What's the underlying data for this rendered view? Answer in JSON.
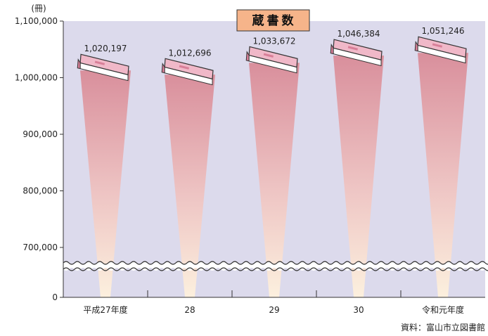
{
  "chart_data": {
    "type": "bar",
    "title": "蔵書数",
    "unit": "(冊)",
    "source": "資料：富山市立図書館",
    "categories": [
      "平成27年度",
      "28",
      "29",
      "30",
      "令和元年度"
    ],
    "values": [
      1020197,
      1012696,
      1033672,
      1046384,
      1051246
    ],
    "value_labels": [
      "1,020,197",
      "1,012,696",
      "1,033,672",
      "1,046,384",
      "1,051,246"
    ],
    "y_ticks": [
      0,
      700000,
      800000,
      900000,
      1000000,
      1100000
    ],
    "y_tick_labels": [
      "0",
      "700,000",
      "800,000",
      "900,000",
      "1,000,000",
      "1,100,000"
    ],
    "ylim": [
      0,
      1100000
    ],
    "axis_break": "between 0 and 700,000",
    "grid": false,
    "marker": "book-icon",
    "colors": {
      "plot_background": "#dcdaec",
      "title_box": "#f6b48a",
      "beam_top": "#d98f9c",
      "beam_bottom": "#fbeede",
      "book_cover": "#f0b8c8",
      "book_pages": "#ffffff"
    }
  }
}
